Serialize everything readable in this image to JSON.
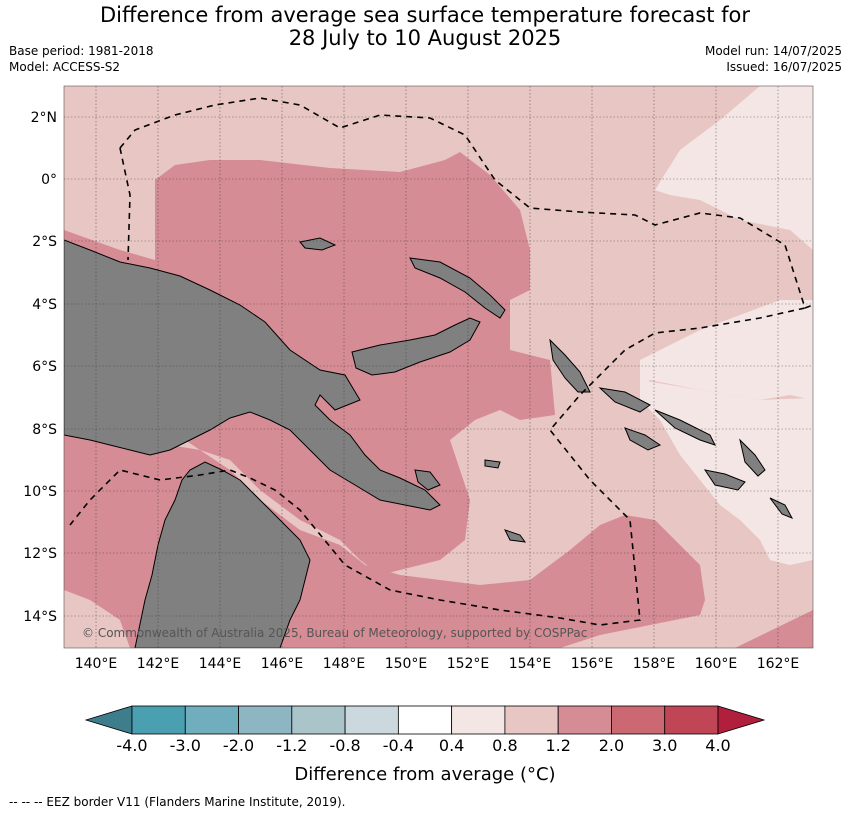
{
  "title": {
    "line1": "Difference from average sea surface temperature forecast for",
    "line2": "28 July to 10 August 2025"
  },
  "meta": {
    "base_period": "Base period: 1981-2018",
    "model": "Model: ACCESS-S2",
    "model_run": "Model run: 14/07/2025",
    "issued": "Issued: 16/07/2025"
  },
  "map": {
    "lat_labels": [
      "2°N",
      "0°",
      "2°S",
      "4°S",
      "6°S",
      "8°S",
      "10°S",
      "12°S",
      "14°S"
    ],
    "lon_labels": [
      "140°E",
      "142°E",
      "144°E",
      "146°E",
      "148°E",
      "150°E",
      "152°E",
      "154°E",
      "156°E",
      "158°E",
      "160°E",
      "162°E"
    ],
    "copyright": "© Commonwealth of Australia 2025, Bureau of Meteorology, supported by COSPPac",
    "land_color": "#808080",
    "eez_legend": "--  --  -- EEZ border V11 (Flanders Marine Institute, 2019)."
  },
  "colorbar": {
    "title": "Difference from average (°C)",
    "tick_labels": [
      "-4.0",
      "-3.0",
      "-2.0",
      "-1.2",
      "-0.8",
      "-0.4",
      "0.4",
      "0.8",
      "1.2",
      "2.0",
      "3.0",
      "4.0"
    ],
    "colors": [
      "#3e7e8c",
      "#4a9fb1",
      "#70adbd",
      "#8db6c2",
      "#a9c5ca",
      "#cbd9de",
      "#ffffff",
      "#f4e6e4",
      "#e8c6c3",
      "#d68c94",
      "#cc6872",
      "#c04656",
      "#b01f3c"
    ]
  }
}
